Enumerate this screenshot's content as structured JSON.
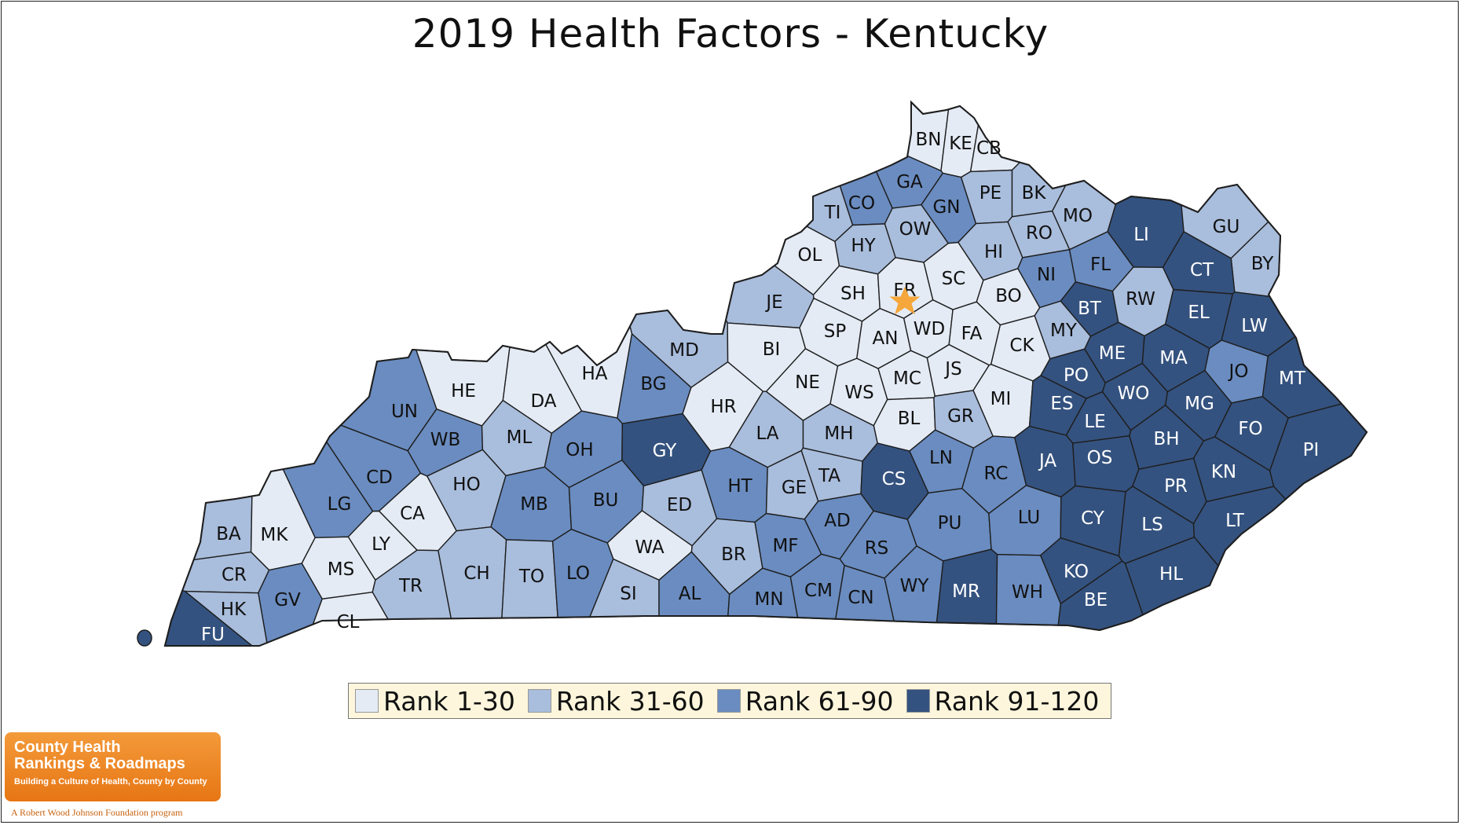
{
  "title": "2019 Health Factors - Kentucky",
  "legend": [
    {
      "label": "Rank 1-30",
      "color": "#e4ebf5"
    },
    {
      "label": "Rank 31-60",
      "color": "#a9bddc"
    },
    {
      "label": "Rank 61-90",
      "color": "#6a8cc0"
    },
    {
      "label": "Rank 91-120",
      "color": "#34527f"
    }
  ],
  "capital_marker": {
    "icon": "star-icon",
    "color": "#f5a73b",
    "county": "FR"
  },
  "logo": {
    "line1": "County Health",
    "line2": "Rankings & Roadmaps",
    "tagline": "Building a Culture of Health, County by County",
    "footer": "A Robert Wood Johnson Foundation program"
  },
  "counties": [
    {
      "code": "BN",
      "rank_group": 1
    },
    {
      "code": "KE",
      "rank_group": 1
    },
    {
      "code": "CB",
      "rank_group": 1
    },
    {
      "code": "GA",
      "rank_group": 3
    },
    {
      "code": "CO",
      "rank_group": 3
    },
    {
      "code": "TI",
      "rank_group": 2
    },
    {
      "code": "GN",
      "rank_group": 3
    },
    {
      "code": "PE",
      "rank_group": 2
    },
    {
      "code": "BK",
      "rank_group": 2
    },
    {
      "code": "OW",
      "rank_group": 2
    },
    {
      "code": "RO",
      "rank_group": 2
    },
    {
      "code": "MO",
      "rank_group": 2
    },
    {
      "code": "LI",
      "rank_group": 4
    },
    {
      "code": "GU",
      "rank_group": 2
    },
    {
      "code": "BY",
      "rank_group": 2
    },
    {
      "code": "HY",
      "rank_group": 2
    },
    {
      "code": "OL",
      "rank_group": 1
    },
    {
      "code": "HI",
      "rank_group": 2
    },
    {
      "code": "NI",
      "rank_group": 3
    },
    {
      "code": "FL",
      "rank_group": 3
    },
    {
      "code": "CT",
      "rank_group": 4
    },
    {
      "code": "JE",
      "rank_group": 2
    },
    {
      "code": "SH",
      "rank_group": 1
    },
    {
      "code": "FR",
      "rank_group": 1
    },
    {
      "code": "SC",
      "rank_group": 1
    },
    {
      "code": "BO",
      "rank_group": 1
    },
    {
      "code": "BT",
      "rank_group": 4
    },
    {
      "code": "RW",
      "rank_group": 2
    },
    {
      "code": "EL",
      "rank_group": 4
    },
    {
      "code": "LW",
      "rank_group": 4
    },
    {
      "code": "SP",
      "rank_group": 1
    },
    {
      "code": "AN",
      "rank_group": 1
    },
    {
      "code": "WD",
      "rank_group": 1
    },
    {
      "code": "FA",
      "rank_group": 1
    },
    {
      "code": "CK",
      "rank_group": 1
    },
    {
      "code": "MY",
      "rank_group": 2
    },
    {
      "code": "ME",
      "rank_group": 4
    },
    {
      "code": "MA",
      "rank_group": 4
    },
    {
      "code": "MD",
      "rank_group": 2
    },
    {
      "code": "BI",
      "rank_group": 1
    },
    {
      "code": "JS",
      "rank_group": 1
    },
    {
      "code": "PO",
      "rank_group": 4
    },
    {
      "code": "JO",
      "rank_group": 3
    },
    {
      "code": "MT",
      "rank_group": 4
    },
    {
      "code": "HE",
      "rank_group": 1
    },
    {
      "code": "HA",
      "rank_group": 1
    },
    {
      "code": "DA",
      "rank_group": 1
    },
    {
      "code": "BG",
      "rank_group": 3
    },
    {
      "code": "NE",
      "rank_group": 1
    },
    {
      "code": "MC",
      "rank_group": 1
    },
    {
      "code": "WS",
      "rank_group": 1
    },
    {
      "code": "MI",
      "rank_group": 1
    },
    {
      "code": "ES",
      "rank_group": 4
    },
    {
      "code": "WO",
      "rank_group": 4
    },
    {
      "code": "MG",
      "rank_group": 4
    },
    {
      "code": "UN",
      "rank_group": 3
    },
    {
      "code": "HR",
      "rank_group": 1
    },
    {
      "code": "BL",
      "rank_group": 1
    },
    {
      "code": "GR",
      "rank_group": 2
    },
    {
      "code": "LE",
      "rank_group": 4
    },
    {
      "code": "FO",
      "rank_group": 4
    },
    {
      "code": "WB",
      "rank_group": 3
    },
    {
      "code": "ML",
      "rank_group": 2
    },
    {
      "code": "OH",
      "rank_group": 3
    },
    {
      "code": "GY",
      "rank_group": 4
    },
    {
      "code": "LA",
      "rank_group": 2
    },
    {
      "code": "MH",
      "rank_group": 2
    },
    {
      "code": "BH",
      "rank_group": 4
    },
    {
      "code": "PI",
      "rank_group": 4
    },
    {
      "code": "CD",
      "rank_group": 3
    },
    {
      "code": "LN",
      "rank_group": 3
    },
    {
      "code": "JA",
      "rank_group": 4
    },
    {
      "code": "OS",
      "rank_group": 4
    },
    {
      "code": "KN",
      "rank_group": 4
    },
    {
      "code": "HO",
      "rank_group": 2
    },
    {
      "code": "TA",
      "rank_group": 2
    },
    {
      "code": "RC",
      "rank_group": 3
    },
    {
      "code": "PR",
      "rank_group": 4
    },
    {
      "code": "LG",
      "rank_group": 3
    },
    {
      "code": "CA",
      "rank_group": 1
    },
    {
      "code": "MB",
      "rank_group": 3
    },
    {
      "code": "BU",
      "rank_group": 3
    },
    {
      "code": "ED",
      "rank_group": 2
    },
    {
      "code": "HT",
      "rank_group": 3
    },
    {
      "code": "GE",
      "rank_group": 2
    },
    {
      "code": "CS",
      "rank_group": 4
    },
    {
      "code": "AD",
      "rank_group": 3
    },
    {
      "code": "PU",
      "rank_group": 3
    },
    {
      "code": "LU",
      "rank_group": 3
    },
    {
      "code": "CY",
      "rank_group": 4
    },
    {
      "code": "LS",
      "rank_group": 4
    },
    {
      "code": "LT",
      "rank_group": 4
    },
    {
      "code": "BA",
      "rank_group": 2
    },
    {
      "code": "MK",
      "rank_group": 1
    },
    {
      "code": "LY",
      "rank_group": 1
    },
    {
      "code": "WA",
      "rank_group": 1
    },
    {
      "code": "MF",
      "rank_group": 3
    },
    {
      "code": "RS",
      "rank_group": 3
    },
    {
      "code": "BR",
      "rank_group": 2
    },
    {
      "code": "MS",
      "rank_group": 1
    },
    {
      "code": "CR",
      "rank_group": 2
    },
    {
      "code": "GV",
      "rank_group": 3
    },
    {
      "code": "TR",
      "rank_group": 2
    },
    {
      "code": "CH",
      "rank_group": 2
    },
    {
      "code": "TO",
      "rank_group": 2
    },
    {
      "code": "LO",
      "rank_group": 3
    },
    {
      "code": "SI",
      "rank_group": 2
    },
    {
      "code": "AL",
      "rank_group": 3
    },
    {
      "code": "MN",
      "rank_group": 3
    },
    {
      "code": "CM",
      "rank_group": 3
    },
    {
      "code": "CN",
      "rank_group": 3
    },
    {
      "code": "WY",
      "rank_group": 3
    },
    {
      "code": "MR",
      "rank_group": 4
    },
    {
      "code": "WH",
      "rank_group": 3
    },
    {
      "code": "KO",
      "rank_group": 4
    },
    {
      "code": "BE",
      "rank_group": 4
    },
    {
      "code": "HL",
      "rank_group": 4
    },
    {
      "code": "HK",
      "rank_group": 2
    },
    {
      "code": "FU",
      "rank_group": 4
    },
    {
      "code": "CL",
      "rank_group": 1
    }
  ]
}
